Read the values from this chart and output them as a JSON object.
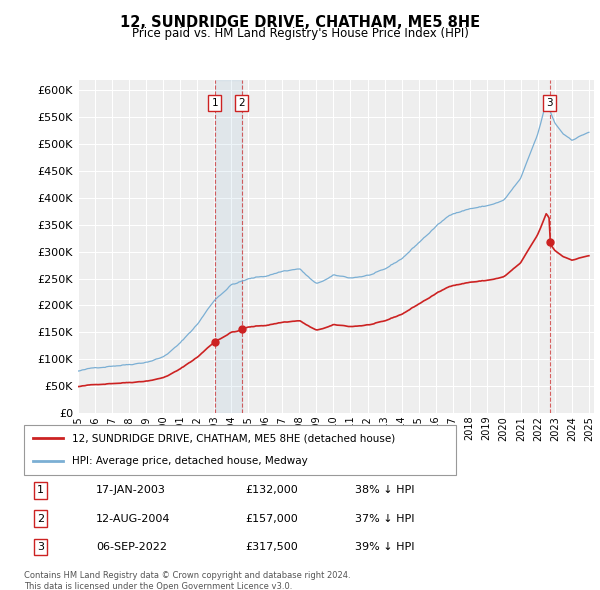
{
  "title": "12, SUNDRIDGE DRIVE, CHATHAM, ME5 8HE",
  "subtitle": "Price paid vs. HM Land Registry's House Price Index (HPI)",
  "ylim": [
    0,
    620000
  ],
  "yticks": [
    0,
    50000,
    100000,
    150000,
    200000,
    250000,
    300000,
    350000,
    400000,
    450000,
    500000,
    550000,
    600000
  ],
  "xlim_start": 1995,
  "xlim_end": 2025.3,
  "background_color": "#ffffff",
  "plot_bg_color": "#eeeeee",
  "grid_color": "#ffffff",
  "hpi_color": "#7bafd4",
  "price_color": "#cc2222",
  "transactions": [
    {
      "label": "1",
      "date": "17-JAN-2003",
      "price": 132000,
      "hpi_pct": "38% ↓ HPI",
      "x_year": 2003.04
    },
    {
      "label": "2",
      "date": "12-AUG-2004",
      "price": 157000,
      "hpi_pct": "37% ↓ HPI",
      "x_year": 2004.62
    },
    {
      "label": "3",
      "date": "06-SEP-2022",
      "price": 317500,
      "hpi_pct": "39% ↓ HPI",
      "x_year": 2022.69
    }
  ],
  "footer": "Contains HM Land Registry data © Crown copyright and database right 2024.\nThis data is licensed under the Open Government Licence v3.0.",
  "legend_line1": "12, SUNDRIDGE DRIVE, CHATHAM, ME5 8HE (detached house)",
  "legend_line2": "HPI: Average price, detached house, Medway",
  "table_rows": [
    {
      "num": "1",
      "date": "17-JAN-2003",
      "price": "£132,000",
      "hpi": "38% ↓ HPI"
    },
    {
      "num": "2",
      "date": "12-AUG-2004",
      "price": "£157,000",
      "hpi": "37% ↓ HPI"
    },
    {
      "num": "3",
      "date": "06-SEP-2022",
      "price": "£317,500",
      "hpi": "39% ↓ HPI"
    }
  ]
}
